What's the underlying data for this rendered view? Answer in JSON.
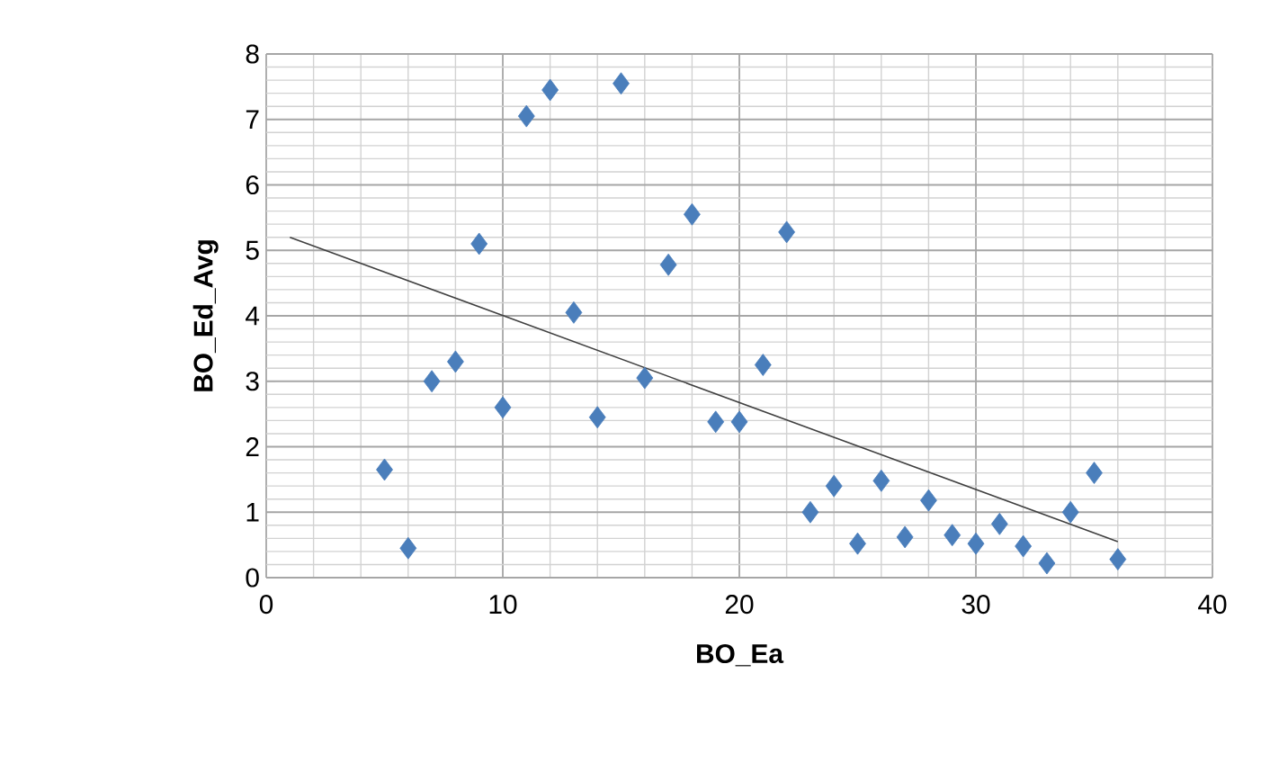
{
  "chart_data": {
    "type": "scatter",
    "xlabel": "BO_Ea",
    "ylabel": "BO_Ed_Avg",
    "xlim": [
      0,
      40
    ],
    "ylim": [
      0,
      8
    ],
    "xticks": [
      0,
      10,
      20,
      30,
      40
    ],
    "yticks": [
      0,
      1,
      2,
      3,
      4,
      5,
      6,
      7,
      8
    ],
    "grid": true,
    "marker": "diamond",
    "series": [
      {
        "color": "#4a7ebb",
        "x": [
          5,
          6,
          7,
          8,
          9,
          10,
          11,
          12,
          13,
          14,
          15,
          16,
          17,
          18,
          19,
          20,
          21,
          22,
          23,
          24,
          25,
          26,
          27,
          28,
          29,
          30,
          31,
          32,
          33,
          34,
          35,
          36
        ],
        "values": [
          1.65,
          0.45,
          3.0,
          3.3,
          5.1,
          2.6,
          7.05,
          7.45,
          4.05,
          2.45,
          7.55,
          3.05,
          4.78,
          5.55,
          2.38,
          2.38,
          3.25,
          5.28,
          1.0,
          1.4,
          0.52,
          1.48,
          0.62,
          1.18,
          0.65,
          0.52,
          0.82,
          0.48,
          0.22,
          1.0,
          1.6,
          0.28
        ]
      },
      {
        "type": "line",
        "color": "#404040",
        "marker": "none",
        "x": [
          1,
          36
        ],
        "values": [
          5.2,
          0.55
        ]
      }
    ]
  }
}
